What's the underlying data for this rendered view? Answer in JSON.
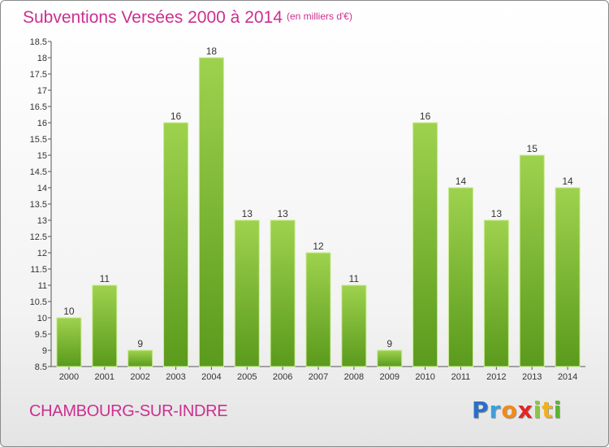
{
  "header": {
    "title": "Subventions Versées 2000 à 2014",
    "unit": "(en milliers d'€)"
  },
  "footer": {
    "commune": "CHAMBOURG-SUR-INDRE",
    "logo_letters": [
      {
        "char": "P",
        "color": "#2a6fc9"
      },
      {
        "char": "r",
        "color": "#3aa0dc"
      },
      {
        "char": "o",
        "color": "#f28a1a"
      },
      {
        "char": "x",
        "color": "#e52424"
      },
      {
        "char": "i",
        "color": "#8cc63f"
      },
      {
        "char": "t",
        "color": "#f2b01a"
      },
      {
        "char": "i",
        "color": "#5ab52e"
      }
    ]
  },
  "colors": {
    "bar_top": "#9ed24e",
    "bar_bottom": "#5a9a1c",
    "bar_edge": "#c8eb8e",
    "accent": "#cc2f8f"
  },
  "chart_data": {
    "type": "bar",
    "categories": [
      "2000",
      "2001",
      "2002",
      "2003",
      "2004",
      "2005",
      "2006",
      "2007",
      "2008",
      "2009",
      "2010",
      "2011",
      "2012",
      "2013",
      "2014"
    ],
    "values": [
      10,
      11,
      9,
      16,
      18,
      13,
      13,
      12,
      11,
      9,
      16,
      14,
      13,
      15,
      14
    ],
    "ylim": [
      8.5,
      18.5
    ],
    "yticks": [
      8.5,
      9,
      9.5,
      10,
      10.5,
      11,
      11.5,
      12,
      12.5,
      13,
      13.5,
      14,
      14.5,
      15,
      15.5,
      16,
      16.5,
      17,
      17.5,
      18,
      18.5
    ],
    "grid": false,
    "legend": "none"
  }
}
